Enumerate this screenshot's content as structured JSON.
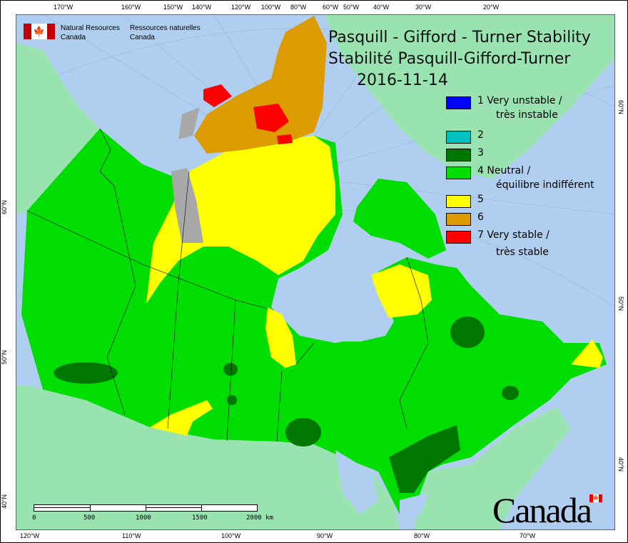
{
  "header": {
    "org_en_line1": "Natural Resources",
    "org_en_line2": "Canada",
    "org_fr_line1": "Ressources naturelles",
    "org_fr_line2": "Canada"
  },
  "title": {
    "line1": "Pasquill - Gifford - Turner Stability",
    "line2": "Stabilité Pasquill-Gifford-Turner",
    "date": "2016-11-14"
  },
  "legend": [
    {
      "class": "1",
      "label": "1 Very unstable /",
      "label2": "très instable",
      "color": "#0000ff"
    },
    {
      "class": "2",
      "label": "2",
      "label2": "",
      "color": "#00c0c0"
    },
    {
      "class": "3",
      "label": "3",
      "label2": "",
      "color": "#007800"
    },
    {
      "class": "4",
      "label": "4 Neutral /",
      "label2": "équilibre indifférent",
      "color": "#00dd00"
    },
    {
      "class": "5",
      "label": "5",
      "label2": "",
      "color": "#ffff00"
    },
    {
      "class": "6",
      "label": "6",
      "label2": "",
      "color": "#dc9c00"
    },
    {
      "class": "7",
      "label": "7 Very stable /",
      "label2": "très stable",
      "color": "#ff0000"
    }
  ],
  "colors": {
    "ocean": "#b0cff0",
    "other_land": "#98e3b0",
    "no_data": "#a8a8a8"
  },
  "axes": {
    "top": [
      "170°W",
      "160°W",
      "150°W",
      "140°W",
      "120°W",
      "100°W",
      "80°W",
      "60°W",
      "50°W",
      "40°W",
      "30°W",
      "20°W"
    ],
    "bottom": [
      "120°W",
      "110°W",
      "100°W",
      "90°W",
      "80°W",
      "70°W"
    ],
    "left": [
      "60°N",
      "50°N",
      "40°N"
    ],
    "right": [
      "60°N",
      "50°N",
      "40°N"
    ]
  },
  "scale": {
    "labels": [
      "0",
      "500",
      "1000",
      "1500",
      "2000 km"
    ]
  },
  "watermark": "Canada"
}
